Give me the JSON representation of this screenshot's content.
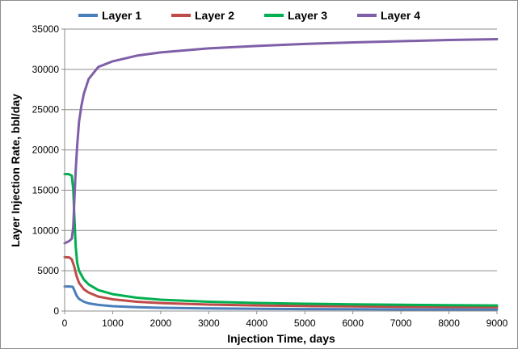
{
  "chart_data": {
    "type": "line",
    "xlabel": "Injection Time, days",
    "ylabel": "Layer Injection Rate, bbl/day",
    "xlim": [
      0,
      9000
    ],
    "ylim": [
      0,
      35000
    ],
    "xticks": [
      0,
      1000,
      2000,
      3000,
      4000,
      5000,
      6000,
      7000,
      8000,
      9000
    ],
    "yticks": [
      0,
      5000,
      10000,
      15000,
      20000,
      25000,
      30000,
      35000
    ],
    "grid": {
      "horizontal": true,
      "vertical": false
    },
    "legend_position": "top",
    "series": [
      {
        "name": "Layer 1",
        "color": "#4a7ebb",
        "points": [
          [
            0,
            3050
          ],
          [
            100,
            3050
          ],
          [
            170,
            3000
          ],
          [
            200,
            2600
          ],
          [
            250,
            1900
          ],
          [
            300,
            1500
          ],
          [
            400,
            1150
          ],
          [
            500,
            950
          ],
          [
            700,
            760
          ],
          [
            1000,
            600
          ],
          [
            1500,
            470
          ],
          [
            2000,
            400
          ],
          [
            3000,
            320
          ],
          [
            4000,
            270
          ],
          [
            5000,
            240
          ],
          [
            6000,
            220
          ],
          [
            7000,
            200
          ],
          [
            8000,
            190
          ],
          [
            9000,
            180
          ]
        ]
      },
      {
        "name": "Layer 2",
        "color": "#be4b48",
        "points": [
          [
            0,
            6700
          ],
          [
            100,
            6650
          ],
          [
            150,
            6400
          ],
          [
            200,
            5500
          ],
          [
            250,
            4300
          ],
          [
            300,
            3500
          ],
          [
            400,
            2700
          ],
          [
            500,
            2300
          ],
          [
            700,
            1800
          ],
          [
            1000,
            1450
          ],
          [
            1500,
            1150
          ],
          [
            2000,
            990
          ],
          [
            3000,
            800
          ],
          [
            4000,
            690
          ],
          [
            5000,
            620
          ],
          [
            6000,
            570
          ],
          [
            7000,
            530
          ],
          [
            8000,
            500
          ],
          [
            9000,
            480
          ]
        ]
      },
      {
        "name": "Layer 3",
        "color": "#00b050",
        "points": [
          [
            0,
            17000
          ],
          [
            80,
            17000
          ],
          [
            150,
            16800
          ],
          [
            180,
            15000
          ],
          [
            200,
            12000
          ],
          [
            230,
            8000
          ],
          [
            260,
            6000
          ],
          [
            300,
            5000
          ],
          [
            400,
            3900
          ],
          [
            500,
            3300
          ],
          [
            700,
            2600
          ],
          [
            1000,
            2100
          ],
          [
            1500,
            1650
          ],
          [
            2000,
            1400
          ],
          [
            3000,
            1150
          ],
          [
            4000,
            1000
          ],
          [
            5000,
            900
          ],
          [
            6000,
            830
          ],
          [
            7000,
            770
          ],
          [
            8000,
            730
          ],
          [
            9000,
            690
          ]
        ]
      },
      {
        "name": "Layer 4",
        "color": "#7f5fa8",
        "points": [
          [
            0,
            8400
          ],
          [
            100,
            8700
          ],
          [
            150,
            9000
          ],
          [
            180,
            10500
          ],
          [
            200,
            13500
          ],
          [
            230,
            17500
          ],
          [
            260,
            20500
          ],
          [
            300,
            23500
          ],
          [
            350,
            25500
          ],
          [
            400,
            27000
          ],
          [
            500,
            28800
          ],
          [
            700,
            30300
          ],
          [
            1000,
            31000
          ],
          [
            1500,
            31700
          ],
          [
            2000,
            32100
          ],
          [
            3000,
            32600
          ],
          [
            4000,
            32900
          ],
          [
            5000,
            33150
          ],
          [
            6000,
            33350
          ],
          [
            7000,
            33500
          ],
          [
            8000,
            33650
          ],
          [
            9000,
            33750
          ]
        ]
      }
    ]
  }
}
